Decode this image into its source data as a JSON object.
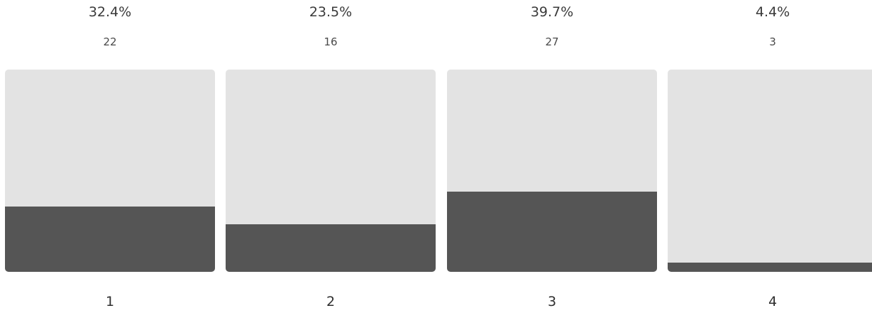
{
  "colors": {
    "track": "#e3e3e3",
    "fill": "#555555"
  },
  "chart_data": {
    "type": "bar",
    "categories": [
      "1",
      "2",
      "3",
      "4"
    ],
    "values": [
      22,
      16,
      27,
      3
    ],
    "percent_labels": [
      "32.4%",
      "23.5%",
      "39.7%",
      "4.4%"
    ],
    "count_labels": [
      "22",
      "16",
      "27",
      "3"
    ],
    "ylim": [
      0,
      68
    ],
    "grid": false,
    "legend": "none"
  }
}
